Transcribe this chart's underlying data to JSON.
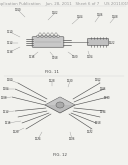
{
  "background_color": "#f2f2ee",
  "header_text": "Patent Application Publication    Jun. 28, 2011   Sheet 6 of 7    US 2011/0156249 A1",
  "header_fontsize": 2.8,
  "fig11_label": "FIG. 11",
  "fig12_label": "FIG. 12",
  "line_color": "#555555",
  "text_color": "#333333",
  "light_gray": "#cccccc",
  "mid_gray": "#aaaaaa",
  "dark_gray": "#888888"
}
